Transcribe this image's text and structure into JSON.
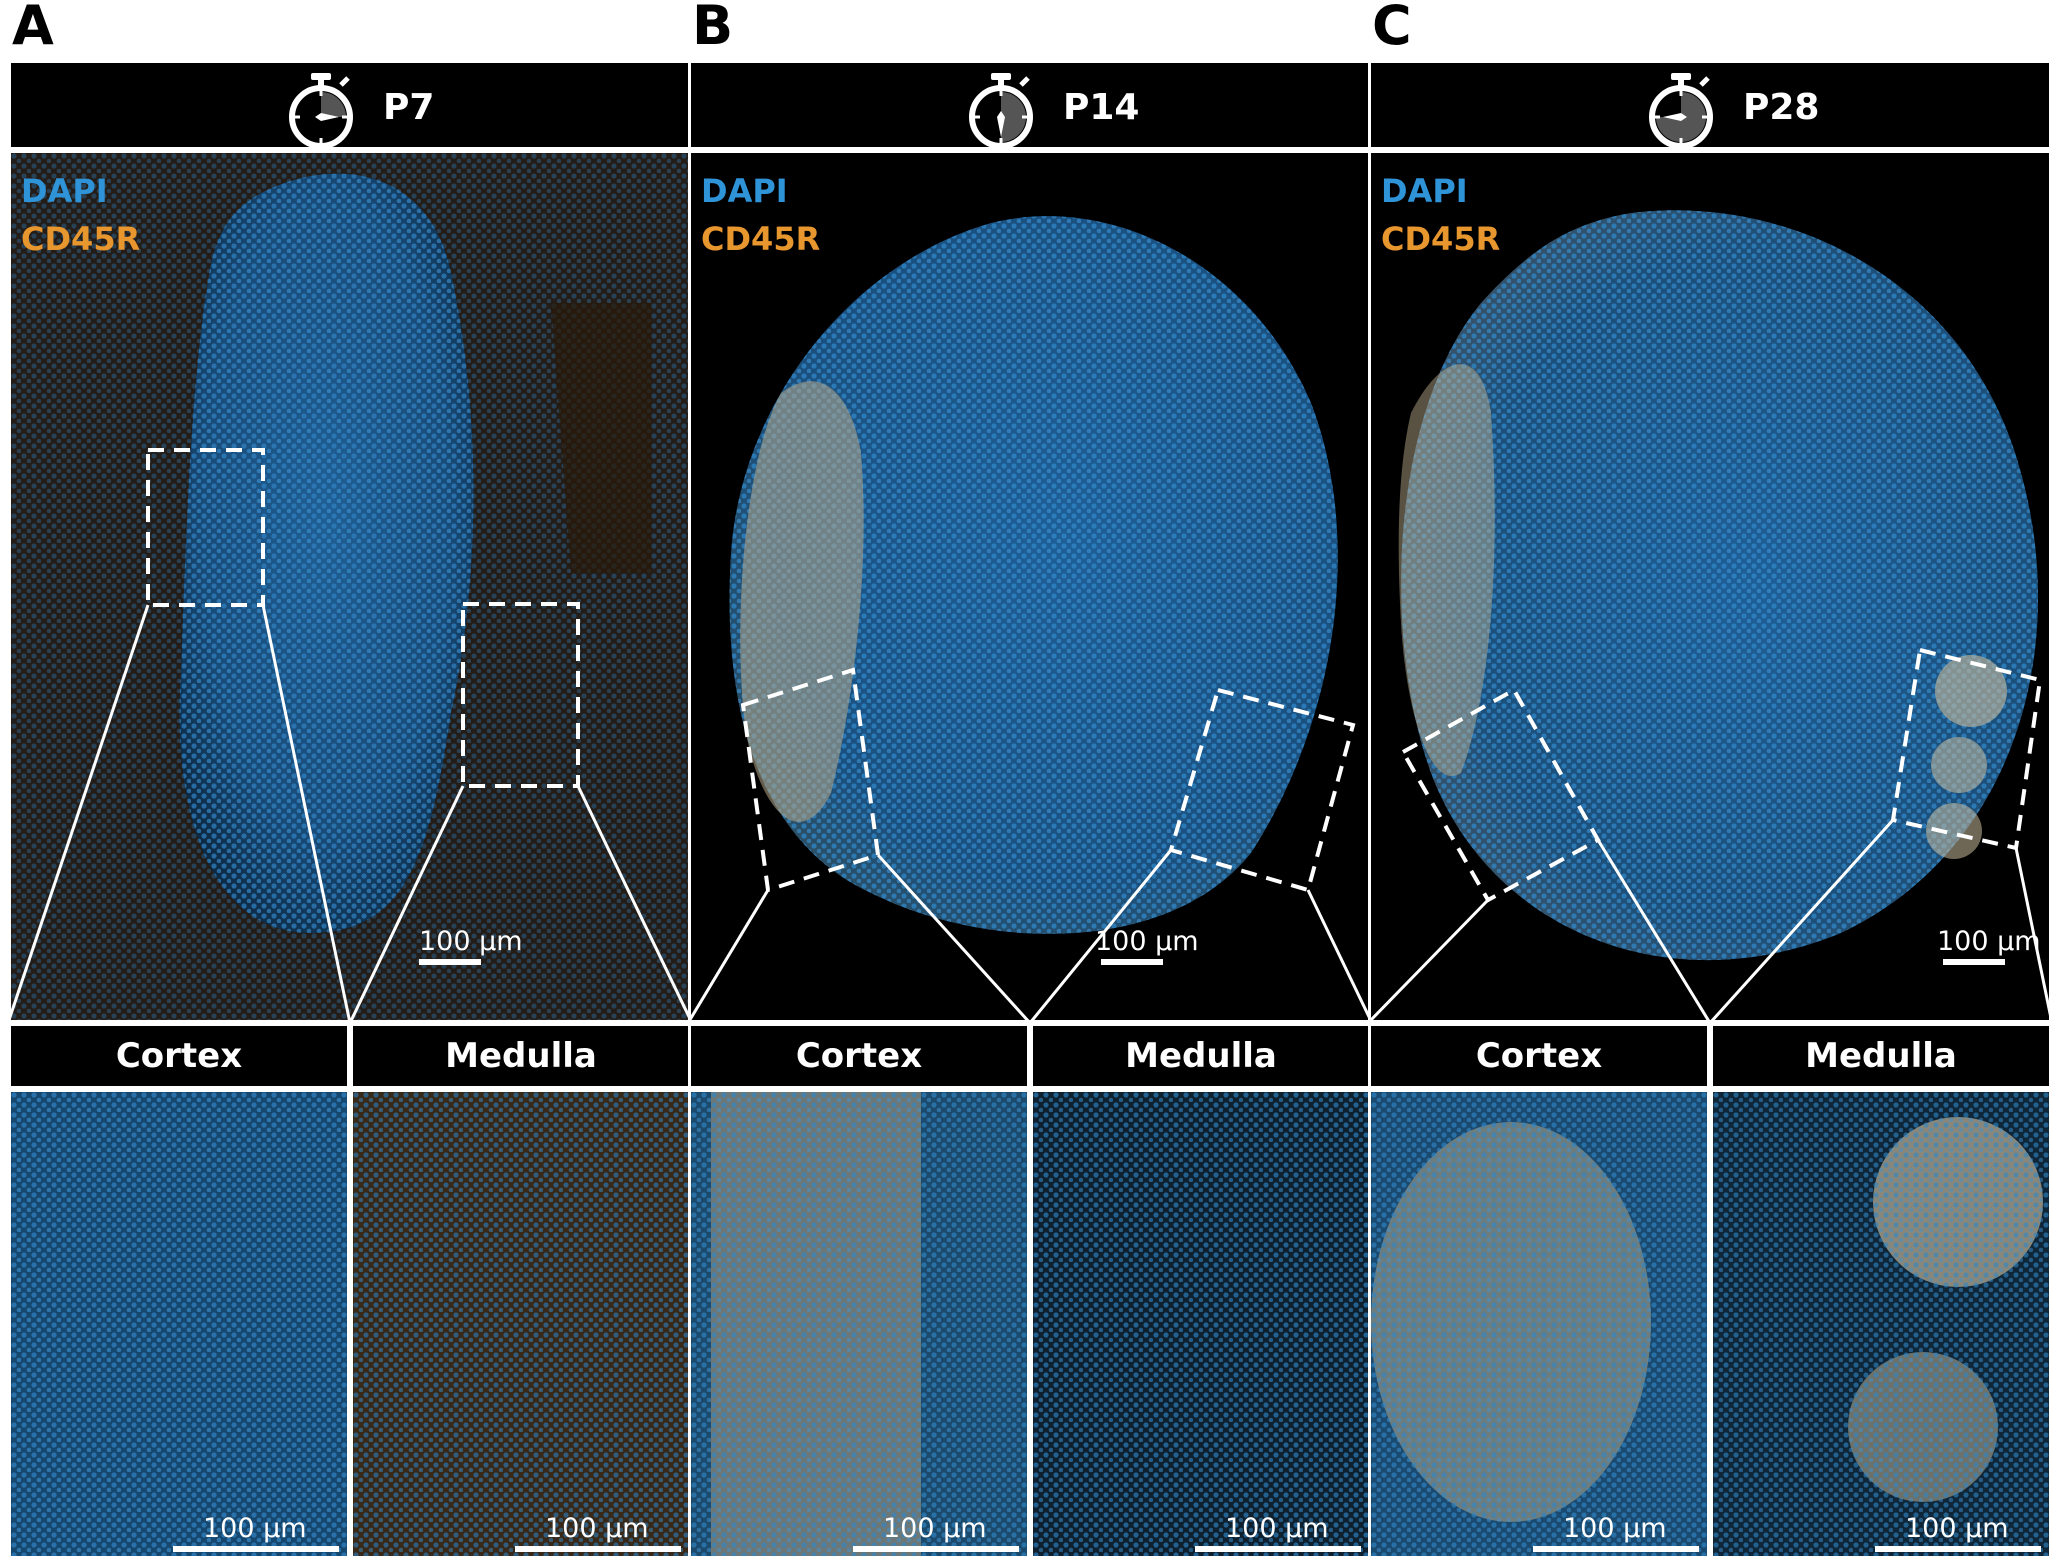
{
  "panels": [
    {
      "letter": "A",
      "age": "P7",
      "legend": {
        "dapi": "DAPI",
        "cd45r": "CD45R"
      },
      "scale": "100 µm",
      "sub": {
        "left": "Cortex",
        "right": "Medulla"
      },
      "zoom_scale": "100 µm"
    },
    {
      "letter": "B",
      "age": "P14",
      "legend": {
        "dapi": "DAPI",
        "cd45r": "CD45R"
      },
      "scale": "100 µm",
      "sub": {
        "left": "Cortex",
        "right": "Medulla"
      },
      "zoom_scale": "100 µm"
    },
    {
      "letter": "C",
      "age": "P28",
      "legend": {
        "dapi": "DAPI",
        "cd45r": "CD45R"
      },
      "scale": "100 µm",
      "sub": {
        "left": "Cortex",
        "right": "Medulla"
      },
      "zoom_scale": "100 µm"
    }
  ],
  "timer_hand_fraction": [
    0.25,
    0.5,
    0.25
  ],
  "colors": {
    "dapi": "#2f93d8",
    "cd45r": "#e8962e",
    "background": "#000000",
    "frame": "#ffffff"
  },
  "icon": "stopwatch-icon"
}
